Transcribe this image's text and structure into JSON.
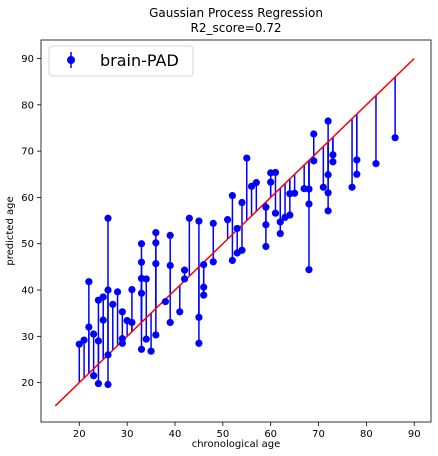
{
  "chart_data": {
    "type": "scatter",
    "title": "Gaussian Process Regression",
    "subtitle": "R2_score=0.72",
    "xlabel": "chronological age",
    "ylabel": "predicted age",
    "xlim": [
      12,
      93.5
    ],
    "ylim": [
      11.5,
      94
    ],
    "xticks": [
      20,
      30,
      40,
      50,
      60,
      70,
      80,
      90
    ],
    "yticks": [
      20,
      30,
      40,
      50,
      60,
      70,
      80,
      90
    ],
    "grid": false,
    "legend_position": "top-left",
    "series": [
      {
        "name": "brain-PAD",
        "color": "#0000ff",
        "marker": "circle",
        "points": [
          [
            20,
            28.3
          ],
          [
            21,
            29.2
          ],
          [
            22,
            41.8
          ],
          [
            22,
            32.0
          ],
          [
            23,
            30.5
          ],
          [
            23,
            21.5
          ],
          [
            24,
            29.0
          ],
          [
            24,
            19.8
          ],
          [
            24,
            37.8
          ],
          [
            25,
            38.5
          ],
          [
            25,
            33.5
          ],
          [
            26,
            55.5
          ],
          [
            26,
            40.0
          ],
          [
            26,
            26.0
          ],
          [
            26,
            19.6
          ],
          [
            27,
            36.9
          ],
          [
            28,
            39.6
          ],
          [
            29,
            29.5
          ],
          [
            29,
            28.5
          ],
          [
            29,
            35.3
          ],
          [
            30,
            33.4
          ],
          [
            31,
            33.0
          ],
          [
            31,
            40.1
          ],
          [
            33,
            50.0
          ],
          [
            33,
            46.0
          ],
          [
            33,
            42.5
          ],
          [
            33,
            39.3
          ],
          [
            33,
            27.2
          ],
          [
            34,
            42.4
          ],
          [
            34,
            29.4
          ],
          [
            35,
            26.8
          ],
          [
            36,
            52.4
          ],
          [
            36,
            50.2
          ],
          [
            36,
            45.7
          ],
          [
            36,
            30.3
          ],
          [
            38,
            37.5
          ],
          [
            39,
            51.8
          ],
          [
            39,
            45.3
          ],
          [
            39,
            33.0
          ],
          [
            41,
            35.3
          ],
          [
            42,
            44.3
          ],
          [
            42,
            42.4
          ],
          [
            43,
            55.5
          ],
          [
            45,
            54.9
          ],
          [
            45,
            34.1
          ],
          [
            45,
            28.5
          ],
          [
            46,
            45.5
          ],
          [
            46,
            40.6
          ],
          [
            46,
            38.9
          ],
          [
            48,
            54.4
          ],
          [
            48,
            46.1
          ],
          [
            51,
            55.2
          ],
          [
            52,
            60.4
          ],
          [
            52,
            46.4
          ],
          [
            53,
            53.3
          ],
          [
            53,
            48.0
          ],
          [
            54,
            58.9
          ],
          [
            54,
            48.6
          ],
          [
            55,
            68.5
          ],
          [
            56,
            62.4
          ],
          [
            57,
            63.2
          ],
          [
            59,
            57.9
          ],
          [
            59,
            54.1
          ],
          [
            59,
            49.4
          ],
          [
            60,
            65.3
          ],
          [
            60,
            63.3
          ],
          [
            61,
            65.4
          ],
          [
            61,
            56.6
          ],
          [
            62,
            54.7
          ],
          [
            62,
            52.2
          ],
          [
            63,
            55.7
          ],
          [
            64,
            56.2
          ],
          [
            64,
            60.8
          ],
          [
            65,
            60.9
          ],
          [
            67,
            61.9
          ],
          [
            68,
            61.8
          ],
          [
            68,
            58.6
          ],
          [
            68,
            44.4
          ],
          [
            69,
            73.7
          ],
          [
            69,
            67.9
          ],
          [
            71,
            62.2
          ],
          [
            72,
            61.0
          ],
          [
            72,
            76.5
          ],
          [
            72,
            64.9
          ],
          [
            72,
            57.1
          ],
          [
            73,
            69.2
          ],
          [
            73,
            67.7
          ],
          [
            77,
            62.2
          ],
          [
            78,
            68.1
          ],
          [
            78,
            65.0
          ],
          [
            82,
            67.3
          ],
          [
            86,
            72.9
          ]
        ]
      },
      {
        "name": "",
        "type": "line",
        "color": "#ff0000",
        "points": [
          [
            15,
            15
          ],
          [
            90,
            90
          ]
        ]
      }
    ]
  }
}
